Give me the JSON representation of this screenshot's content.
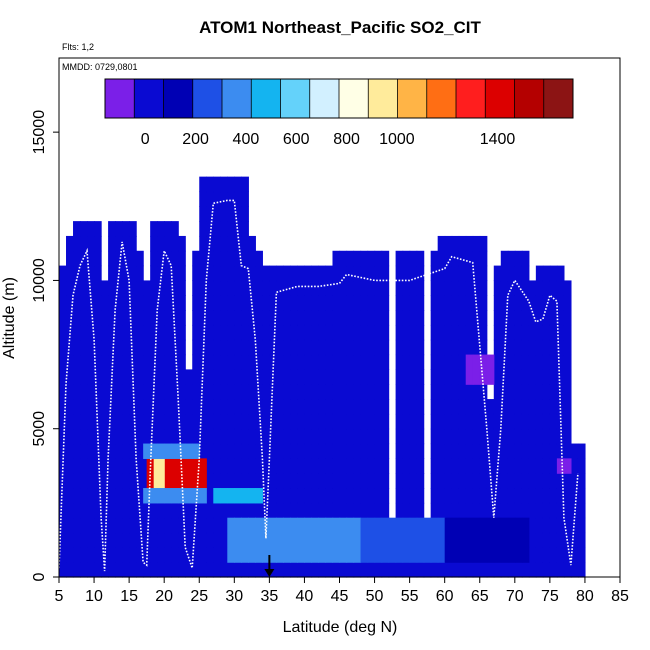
{
  "chart_data": {
    "type": "heatmap",
    "title": "ATOM1 Northeast_Pacific SO2_CIT",
    "subtitle_flights": "Flts: 1,2",
    "subtitle_dates": "MMDD: 0729,0801",
    "xlabel": "Latitude (deg N)",
    "ylabel": "Altitude (m)",
    "xlim": [
      5,
      85
    ],
    "ylim": [
      0,
      17500
    ],
    "xticks": [
      "5",
      "10",
      "15",
      "20",
      "25",
      "30",
      "35",
      "40",
      "45",
      "50",
      "55",
      "60",
      "65",
      "70",
      "75",
      "80",
      "85"
    ],
    "yticks": [
      "0",
      "5000",
      "10000",
      "15000"
    ],
    "colorbar": {
      "range": [
        -160,
        1700
      ],
      "ticks": [
        "0",
        "200",
        "400",
        "600",
        "800",
        "1000",
        "1400"
      ],
      "colors": [
        "#7b1fe8",
        "#0a0ad2",
        "#0000b4",
        "#1e50e6",
        "#3c8cf0",
        "#14b4f0",
        "#64d2fa",
        "#d2f0ff",
        "#ffffe6",
        "#ffeb9b",
        "#ffb446",
        "#ff6e14",
        "#ff1e1e",
        "#dc0000",
        "#b40000",
        "#8c1414"
      ]
    },
    "grid_cell_width_deg": 1,
    "grid_cell_height_m": 500,
    "background_value": 20,
    "cells": [
      {
        "lat_range": [
          17.5,
          26
        ],
        "alt_range": [
          3000,
          4000
        ],
        "value": 1400
      },
      {
        "lat_range": [
          18.5,
          20
        ],
        "alt_range": [
          3000,
          4000
        ],
        "value": 900
      },
      {
        "lat_range": [
          17,
          26
        ],
        "alt_range": [
          2500,
          3000
        ],
        "value": 400
      },
      {
        "lat_range": [
          17,
          25
        ],
        "alt_range": [
          4000,
          4500
        ],
        "value": 350
      },
      {
        "lat_range": [
          27,
          34
        ],
        "alt_range": [
          2500,
          3000
        ],
        "value": 480
      },
      {
        "lat_range": [
          29,
          48
        ],
        "alt_range": [
          500,
          2000
        ],
        "value": 380
      },
      {
        "lat_range": [
          48,
          60
        ],
        "alt_range": [
          500,
          2000
        ],
        "value": 260
      },
      {
        "lat_range": [
          60,
          72
        ],
        "alt_range": [
          500,
          2000
        ],
        "value": 170
      },
      {
        "lat_range": [
          63,
          67
        ],
        "alt_range": [
          6500,
          7500
        ],
        "value": -80
      },
      {
        "lat_range": [
          76,
          78
        ],
        "alt_range": [
          3500,
          4000
        ],
        "value": -60
      }
    ],
    "flight_track": [
      [
        5,
        300
      ],
      [
        6,
        6500
      ],
      [
        7,
        9500
      ],
      [
        8,
        10500
      ],
      [
        9,
        11000
      ],
      [
        10,
        8000
      ],
      [
        11,
        2000
      ],
      [
        11.5,
        200
      ],
      [
        12,
        4000
      ],
      [
        13,
        9000
      ],
      [
        14,
        11300
      ],
      [
        15,
        10000
      ],
      [
        16,
        4000
      ],
      [
        17,
        500
      ],
      [
        17.5,
        400
      ],
      [
        18,
        3500
      ],
      [
        19,
        9000
      ],
      [
        20,
        11000
      ],
      [
        21,
        10500
      ],
      [
        22,
        6000
      ],
      [
        23,
        1000
      ],
      [
        24,
        300
      ],
      [
        25,
        4000
      ],
      [
        26,
        10000
      ],
      [
        27,
        12600
      ],
      [
        29,
        12700
      ],
      [
        30,
        12700
      ],
      [
        31,
        10500
      ],
      [
        32,
        10400
      ],
      [
        33,
        8000
      ],
      [
        34,
        4000
      ],
      [
        34.5,
        1300
      ],
      [
        35,
        4000
      ],
      [
        36,
        9600
      ],
      [
        39,
        9800
      ],
      [
        42,
        9800
      ],
      [
        45,
        9900
      ],
      [
        46,
        10200
      ],
      [
        50,
        10000
      ],
      [
        55,
        10000
      ],
      [
        60,
        10400
      ],
      [
        61,
        10800
      ],
      [
        64,
        10600
      ],
      [
        66,
        5000
      ],
      [
        67,
        2000
      ],
      [
        68,
        5000
      ],
      [
        69,
        9500
      ],
      [
        70,
        10000
      ],
      [
        72,
        9300
      ],
      [
        73,
        8600
      ],
      [
        74,
        8700
      ],
      [
        75,
        9500
      ],
      [
        76,
        9300
      ],
      [
        77,
        2000
      ],
      [
        78,
        400
      ],
      [
        79,
        3500
      ]
    ],
    "marker": {
      "lat": 35,
      "alt": 0
    }
  }
}
